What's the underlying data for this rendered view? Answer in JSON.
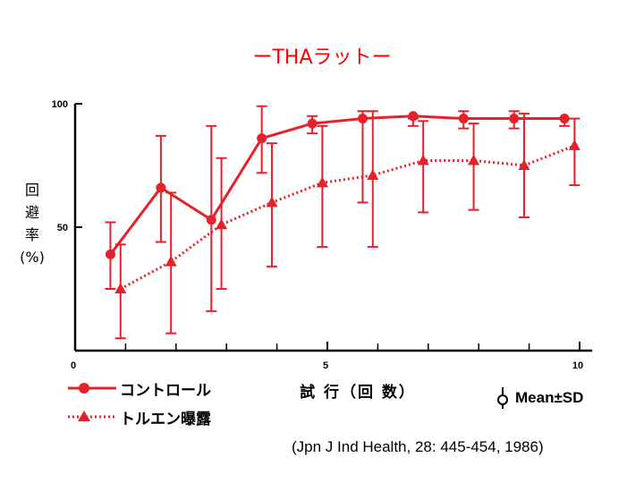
{
  "title": "ーTHAラットー",
  "ylabel_chars": [
    "回",
    "避",
    "率",
    "(%)"
  ],
  "xlabel": "試 行（回 数）",
  "colors": {
    "series": "#e8202a",
    "title": "#ff0000",
    "axis": "#000000"
  },
  "legend": {
    "control": "コントロール",
    "toluene": "トルエン曝露",
    "meansd": "Mean±SD"
  },
  "source": "(Jpn J Ind Health, 28: 445-454, 1986)",
  "chart_data": {
    "type": "line",
    "xlim": [
      0,
      10
    ],
    "ylim": [
      0,
      100
    ],
    "x_ticks": [
      0,
      5,
      10
    ],
    "x_minor_ticks": [
      1,
      2,
      3,
      4,
      6,
      7,
      8,
      9
    ],
    "y_ticks": [
      50,
      100
    ],
    "grid": false,
    "legend_position": "bottom-left",
    "series": [
      {
        "name": "コントロール",
        "marker": "circle",
        "line_style": "solid",
        "x": [
          0.7,
          1.7,
          2.7,
          3.7,
          4.7,
          5.7,
          6.7,
          7.7,
          8.7,
          9.7
        ],
        "y": [
          39,
          66,
          53,
          86,
          92,
          94,
          95,
          94,
          94,
          94
        ],
        "sd_low": [
          25,
          44,
          16,
          72,
          88,
          60,
          91,
          90,
          90,
          91
        ],
        "sd_high": [
          52,
          87,
          91,
          99,
          95,
          97,
          94,
          97,
          97,
          94
        ]
      },
      {
        "name": "トルエン曝露",
        "marker": "triangle",
        "line_style": "dotted",
        "x": [
          0.9,
          1.9,
          2.9,
          3.9,
          4.9,
          5.9,
          6.9,
          7.9,
          8.9,
          9.9
        ],
        "y": [
          25,
          36,
          51,
          60,
          68,
          71,
          77,
          77,
          75,
          83
        ],
        "sd_low": [
          5,
          7,
          25,
          34,
          42,
          42,
          56,
          57,
          54,
          67
        ],
        "sd_high": [
          43,
          64,
          78,
          84,
          91,
          97,
          93,
          92,
          96,
          94
        ]
      }
    ]
  }
}
